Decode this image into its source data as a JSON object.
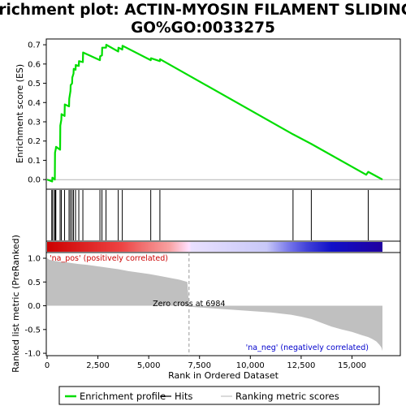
{
  "chart_data": {
    "type": "line",
    "title_line1": "Enrichment plot: ACTIN-MYOSIN FILAMENT SLIDING%",
    "title_line2": "GO%GO:0033275",
    "top_panel": {
      "ylabel": "Enrichment score (ES)",
      "ylim": [
        -0.05,
        0.73
      ],
      "yticks": [
        "0.0",
        "0.1",
        "0.2",
        "0.3",
        "0.4",
        "0.5",
        "0.6",
        "0.7"
      ],
      "series": [
        {
          "name": "Enrichment profile",
          "color": "#00dd00",
          "x": [
            0,
            250,
            260,
            380,
            390,
            430,
            440,
            640,
            650,
            700,
            710,
            860,
            870,
            1080,
            1090,
            1150,
            1160,
            1230,
            1240,
            1300,
            1310,
            1400,
            1410,
            1560,
            1570,
            1760,
            1770,
            2600,
            2610,
            2700,
            2710,
            2900,
            2910,
            3500,
            3510,
            3700,
            3710,
            5100,
            5110,
            5550,
            5560,
            12100,
            13000,
            15700,
            15800,
            16500
          ],
          "y": [
            0.0,
            -0.01,
            0.01,
            0.0,
            0.14,
            0.16,
            0.17,
            0.155,
            0.28,
            0.31,
            0.34,
            0.33,
            0.39,
            0.38,
            0.42,
            0.46,
            0.49,
            0.5,
            0.53,
            0.55,
            0.575,
            0.57,
            0.595,
            0.59,
            0.615,
            0.61,
            0.66,
            0.62,
            0.64,
            0.645,
            0.685,
            0.685,
            0.7,
            0.665,
            0.685,
            0.675,
            0.695,
            0.62,
            0.63,
            0.615,
            0.625,
            0.235,
            0.185,
            0.025,
            0.04,
            0.0
          ]
        }
      ]
    },
    "hits": {
      "name": "Hits",
      "color": "#000000",
      "x": [
        230,
        280,
        370,
        400,
        430,
        640,
        700,
        860,
        1080,
        1150,
        1230,
        1300,
        1400,
        1560,
        1760,
        2600,
        2700,
        2900,
        3500,
        3700,
        5100,
        5550,
        12100,
        13000,
        15800
      ]
    },
    "bottom_panel": {
      "ylabel": "Ranked list metric (PreRanked)",
      "ylim": [
        -1.05,
        1.12
      ],
      "yticks": [
        "1.0",
        "0.5",
        "0.0",
        "-0.5",
        "-1.0"
      ],
      "series": [
        {
          "name": "Ranking metric scores",
          "color": "#c0c0c0",
          "x": [
            0,
            100,
            300,
            600,
            1000,
            1500,
            2000,
            2500,
            3000,
            3500,
            4000,
            4500,
            5000,
            5500,
            6000,
            6500,
            6900,
            6984,
            7000,
            8000,
            9000,
            10000,
            11000,
            12000,
            12500,
            13000,
            13500,
            14000,
            14500,
            15000,
            15500,
            15800,
            16000,
            16200,
            16350,
            16450,
            16500
          ],
          "y": [
            1.0,
            0.97,
            0.95,
            0.93,
            0.91,
            0.88,
            0.86,
            0.83,
            0.8,
            0.77,
            0.73,
            0.7,
            0.67,
            0.63,
            0.59,
            0.55,
            0.5,
            0.0,
            -0.02,
            -0.05,
            -0.08,
            -0.11,
            -0.14,
            -0.19,
            -0.23,
            -0.28,
            -0.36,
            -0.44,
            -0.5,
            -0.55,
            -0.62,
            -0.66,
            -0.7,
            -0.75,
            -0.82,
            -0.88,
            -0.95
          ]
        }
      ],
      "zero_cross_label": "Zero cross at 6984",
      "zero_cross_x": 6984,
      "pos_label": "'na_pos' (positively correlated)",
      "neg_label": "'na_neg' (negatively correlated)",
      "pos_color": "#cc0000",
      "neg_color": "#0000cc"
    },
    "xlabel": "Rank in Ordered Dataset",
    "xlim": [
      0,
      16500
    ],
    "xticks": [
      0,
      2500,
      5000,
      7500,
      10000,
      12500,
      15000
    ],
    "xtick_labels": [
      "0",
      "2,500",
      "5,000",
      "7,500",
      "10,000",
      "12,500",
      "15,000"
    ],
    "colorbar": {
      "stops": [
        {
          "x": 0,
          "color": "#cc0000"
        },
        {
          "x": 3700,
          "color": "#ee4444"
        },
        {
          "x": 4700,
          "color": "#f07070"
        },
        {
          "x": 6000,
          "color": "#f8a0a0"
        },
        {
          "x": 6984,
          "color": "#ffe0ff"
        },
        {
          "x": 7100,
          "color": "#e8e0ff"
        },
        {
          "x": 10800,
          "color": "#c8c8f8"
        },
        {
          "x": 12000,
          "color": "#7070e8"
        },
        {
          "x": 12800,
          "color": "#4040d8"
        },
        {
          "x": 14000,
          "color": "#1010c8"
        },
        {
          "x": 16500,
          "color": "#2000a0"
        }
      ]
    },
    "legend": {
      "items": [
        {
          "label": "Enrichment profile",
          "color": "#00dd00",
          "style": "thick"
        },
        {
          "label": "Hits",
          "color": "#000000",
          "style": "thin"
        },
        {
          "label": "Ranking metric scores",
          "color": "#c0c0c0",
          "style": "thin"
        }
      ]
    }
  }
}
